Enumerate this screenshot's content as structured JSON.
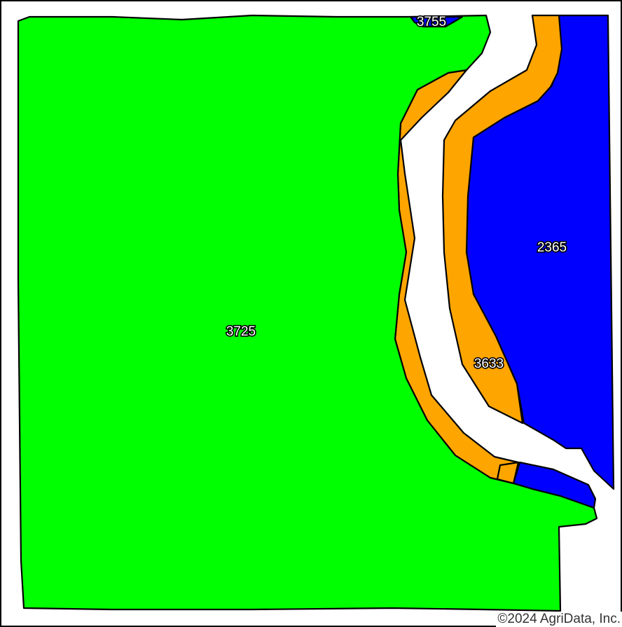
{
  "map": {
    "colors": {
      "green": "#00ff00",
      "blue": "#0000ff",
      "orange": "#ffa500",
      "white": "#ffffff",
      "outline": "#000000"
    },
    "units": [
      {
        "id": "3725",
        "label": "3725",
        "color": "#00ff00"
      },
      {
        "id": "3755",
        "label": "3755",
        "color": "#0000ff"
      },
      {
        "id": "2365",
        "label": "2365",
        "color": "#0000ff"
      },
      {
        "id": "3633",
        "label": "3633",
        "color": "#ffa500"
      }
    ],
    "copyright": "©2024 AgriData, Inc."
  }
}
